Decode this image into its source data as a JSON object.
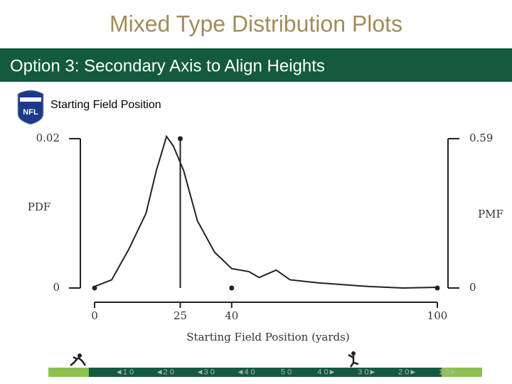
{
  "header": {
    "title": "Mixed Type Distribution Plots",
    "subtitle": "Option 3: Secondary Axis to Align Heights",
    "logo": "NFL"
  },
  "chart_data": {
    "type": "mixed",
    "title": "Starting Field Position",
    "xlabel": "Starting Field Position (yards)",
    "ylabel": "PDF",
    "y2label": "PMF",
    "xlim": [
      0,
      100
    ],
    "xticks": [
      0,
      25,
      40,
      100
    ],
    "ylim": [
      0,
      0.02
    ],
    "yticks": [
      0,
      0.02
    ],
    "y2lim": [
      0,
      0.59
    ],
    "y2ticks": [
      0,
      0.59
    ],
    "series": [
      {
        "type": "line",
        "color": "#222222",
        "x": [
          0,
          5,
          10,
          15,
          18,
          21,
          23,
          26,
          30,
          35,
          40,
          45,
          48,
          53,
          57,
          65,
          80,
          90,
          100
        ],
        "values": [
          0.0002,
          0.0011,
          0.0052,
          0.01,
          0.0157,
          0.0203,
          0.019,
          0.0157,
          0.009,
          0.0048,
          0.0026,
          0.0022,
          0.0014,
          0.0024,
          0.0011,
          0.0007,
          0.0002,
          0,
          0.0001
        ]
      },
      {
        "type": "stem",
        "axis": "y2",
        "color": "#222222",
        "x": [
          0,
          25,
          40,
          100
        ],
        "values": [
          0,
          0.59,
          0,
          0
        ]
      }
    ]
  },
  "footer": {
    "yard_labels": [
      "◄1 0",
      "◄2 0",
      "◄3 0",
      "◄4 0",
      "5 0",
      "4 0►",
      "3 0►",
      "2 0►",
      "1 0►"
    ]
  }
}
